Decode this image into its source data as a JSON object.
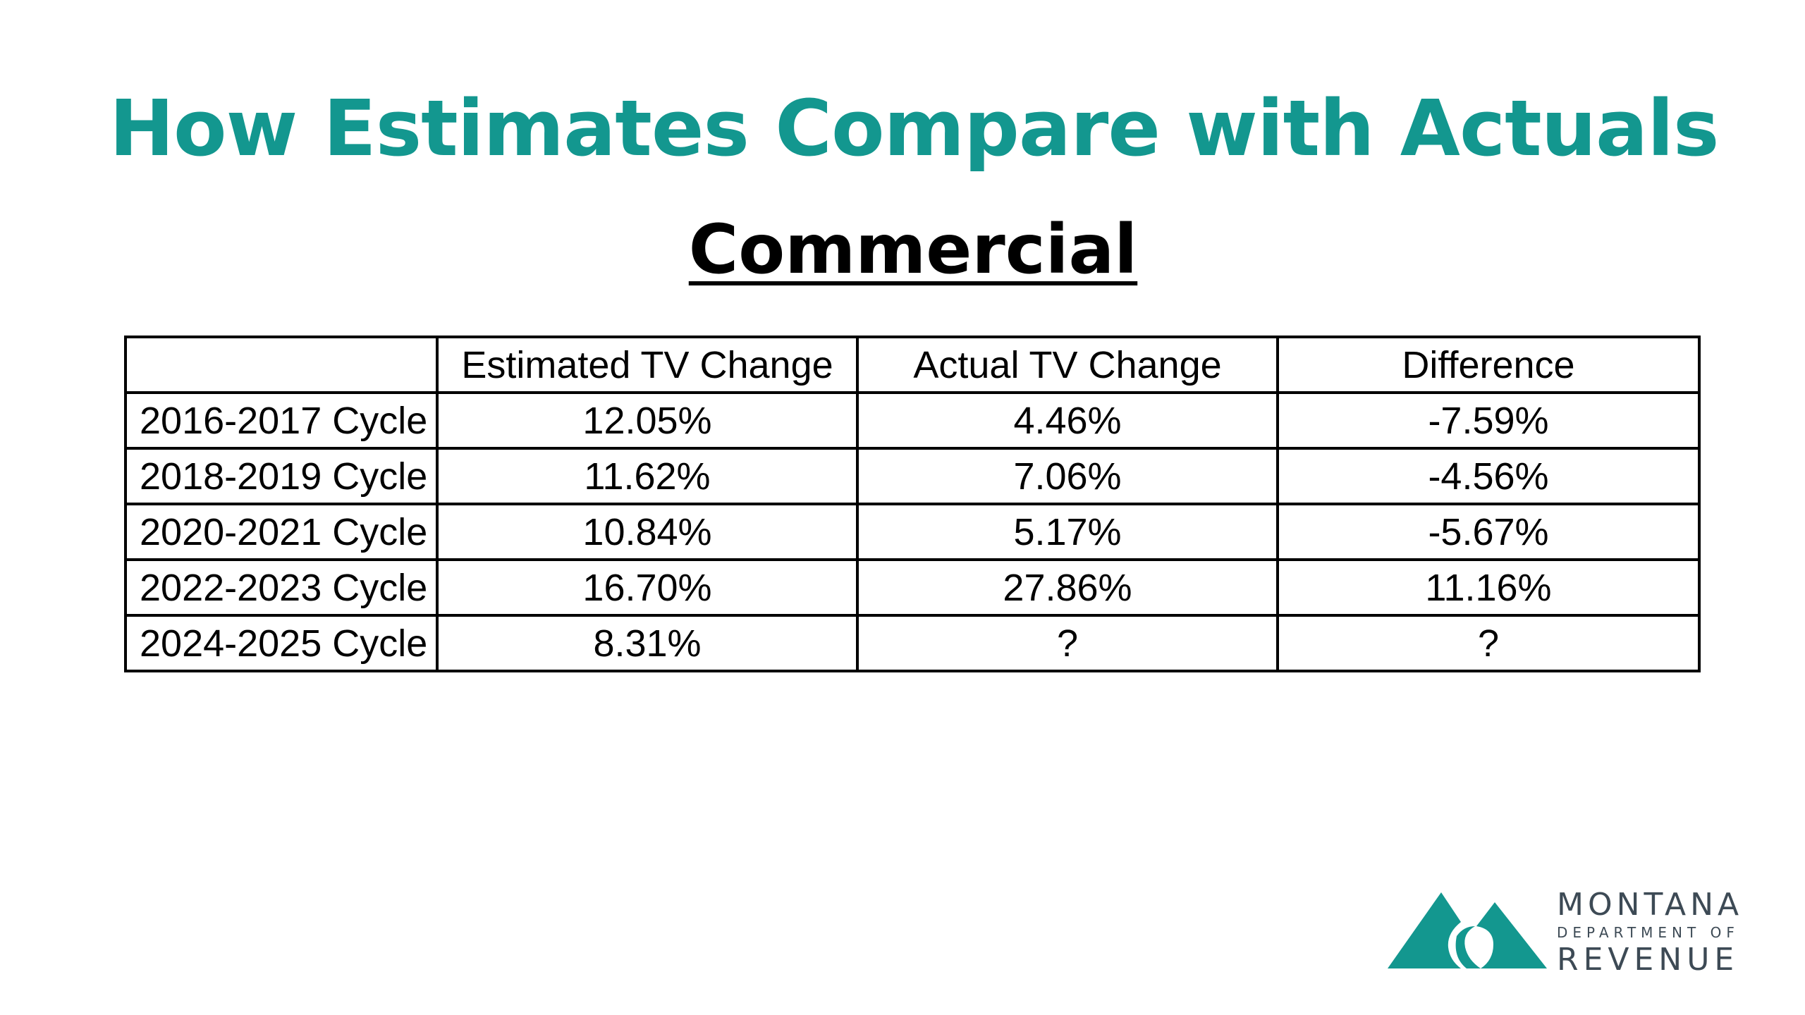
{
  "slide": {
    "title": "How Estimates Compare with Actuals",
    "subtitle": "Commercial"
  },
  "table": {
    "headers": [
      "",
      "Estimated TV Change",
      "Actual TV Change",
      "Difference"
    ],
    "rows": [
      [
        "2016-2017 Cycle",
        "12.05%",
        "4.46%",
        "-7.59%"
      ],
      [
        "2018-2019 Cycle",
        "11.62%",
        "7.06%",
        "-4.56%"
      ],
      [
        "2020-2021 Cycle",
        "10.84%",
        "5.17%",
        "-5.67%"
      ],
      [
        "2022-2023 Cycle",
        "16.70%",
        "27.86%",
        "11.16%"
      ],
      [
        "2024-2025 Cycle",
        "8.31%",
        "?",
        "?"
      ]
    ]
  },
  "logo": {
    "line1": "MONTANA",
    "line2": "DEPARTMENT OF",
    "line3": "REVENUE",
    "icon": "mountains-icon",
    "color": "#13978f"
  },
  "colors": {
    "accent": "#13978f",
    "text": "#000000"
  }
}
